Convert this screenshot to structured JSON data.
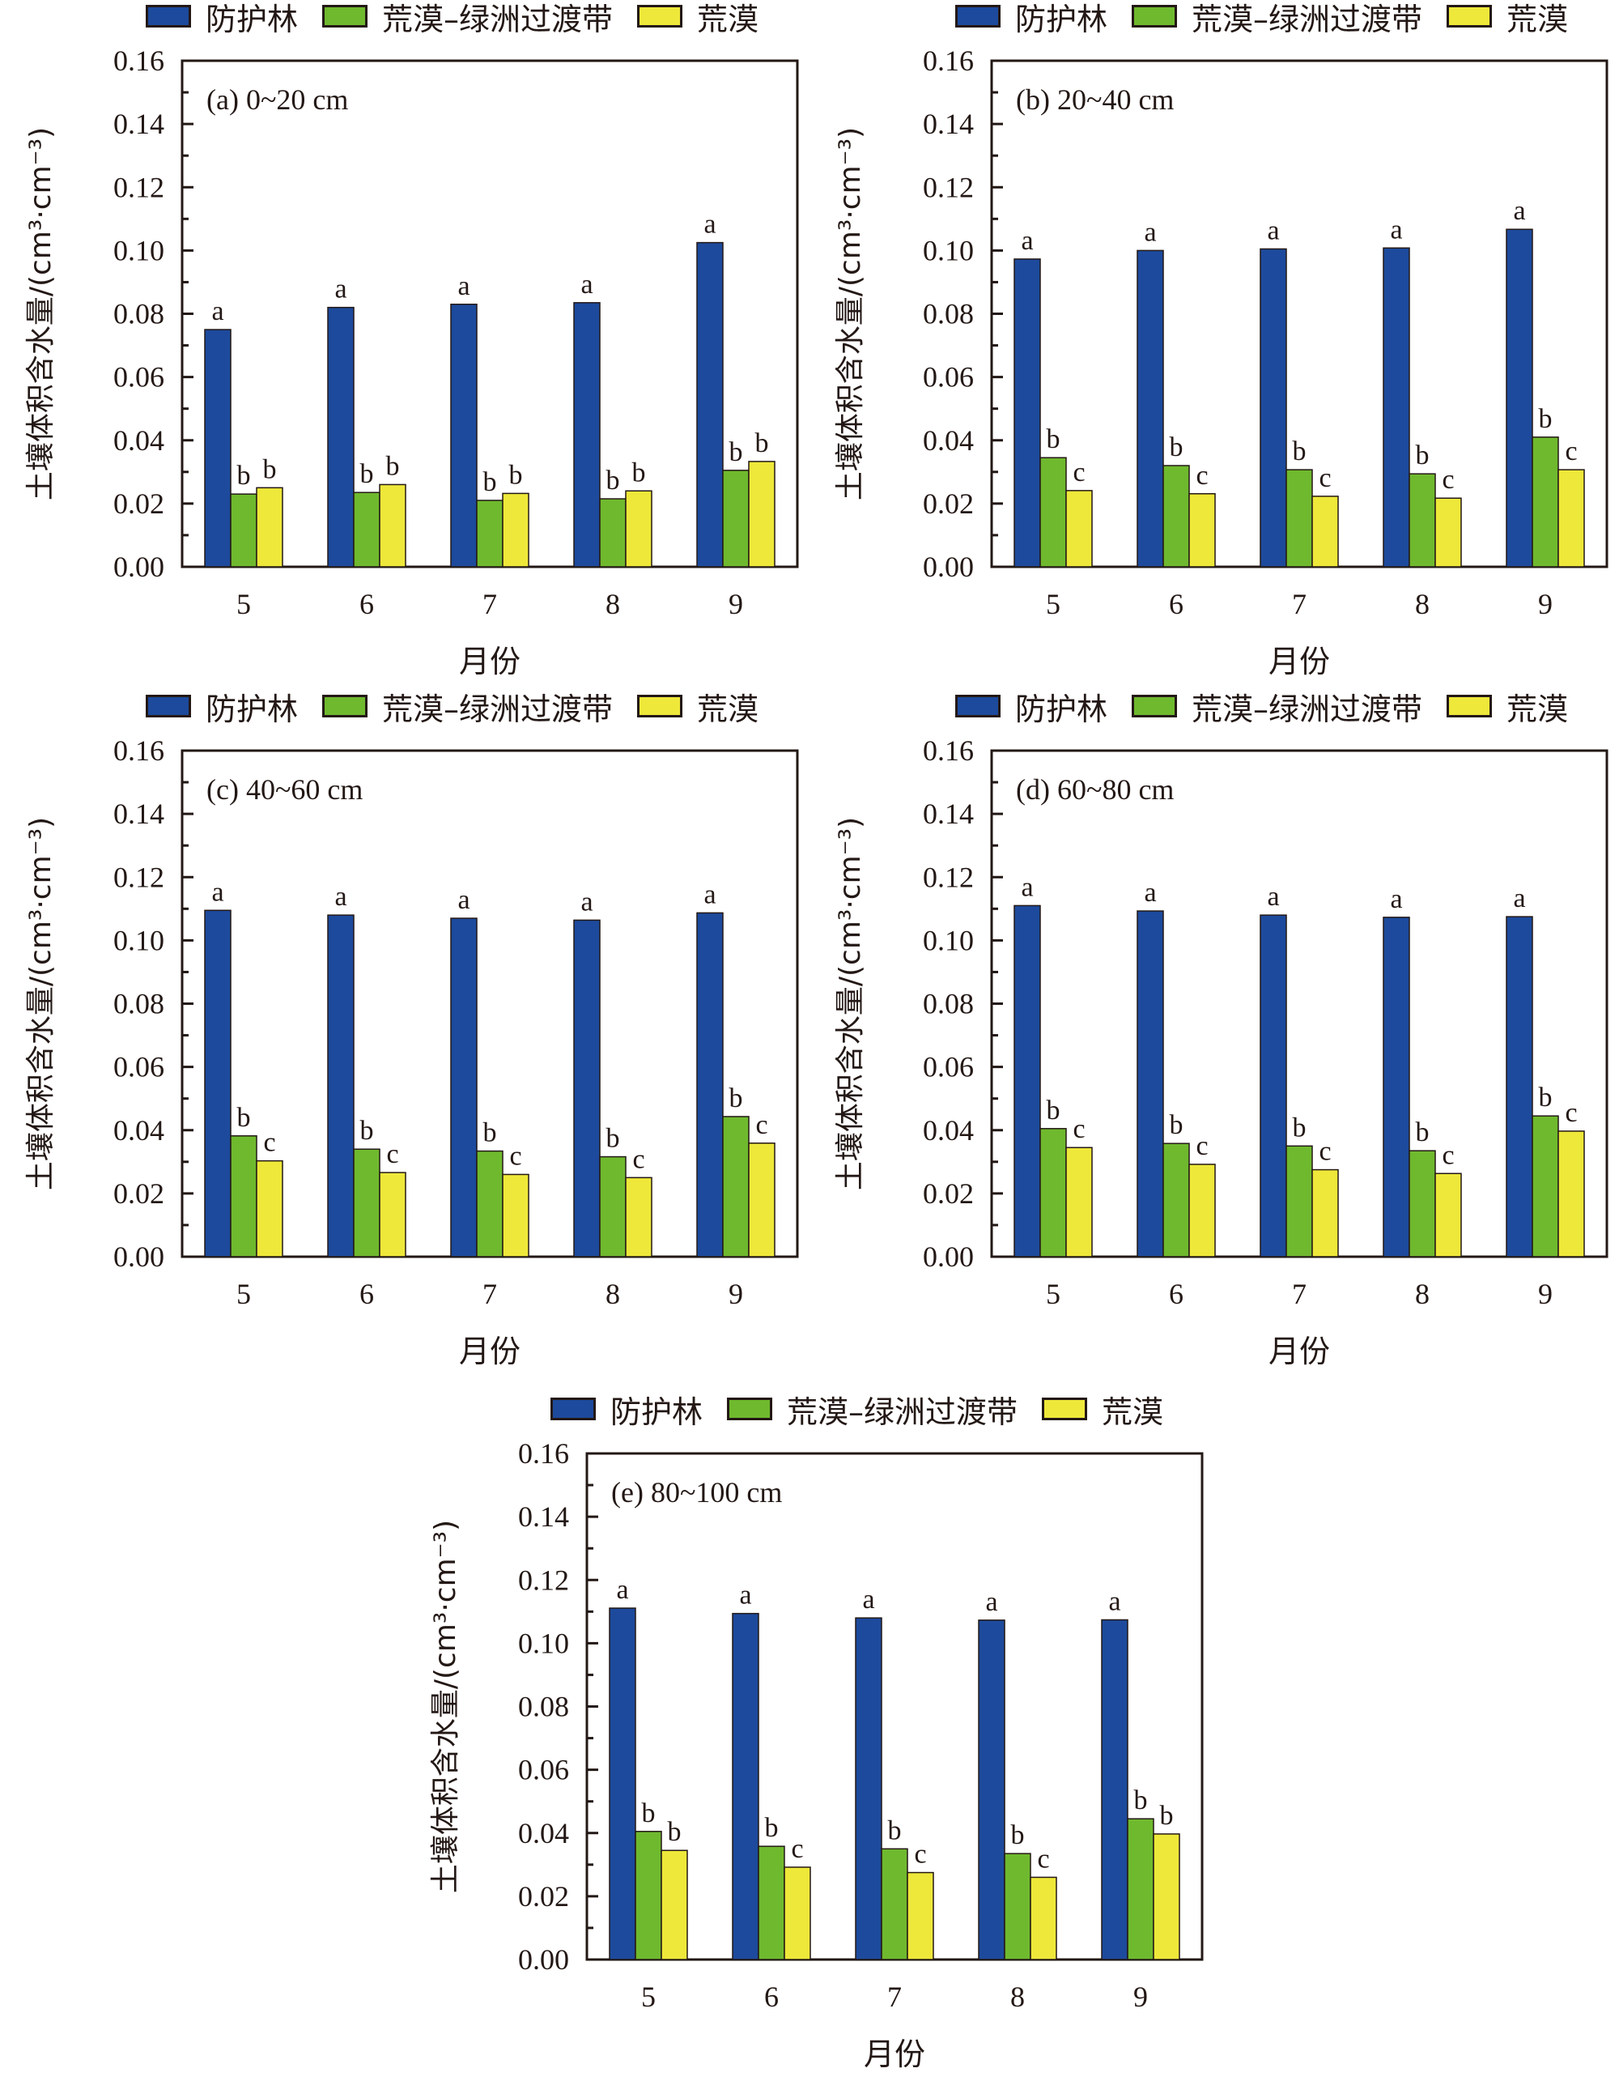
{
  "figure": {
    "legend": [
      {
        "label": "防护林",
        "color": "#1d4a9c"
      },
      {
        "label": "荒漠–绿洲过渡带",
        "color": "#6fb92e"
      },
      {
        "label": "荒漠",
        "color": "#eee83a"
      }
    ],
    "xlabel": "月份",
    "ylabel": "土壤体积含水量/(cm³·cm⁻³)"
  },
  "chart_data": [
    {
      "type": "bar",
      "panel": "a",
      "title": "(a) 0~20 cm",
      "categories": [
        "5",
        "6",
        "7",
        "8",
        "9"
      ],
      "xlabel": "月份",
      "ylabel": "土壤体积含水量/(cm³·cm⁻³)",
      "ylim": [
        0,
        0.16
      ],
      "yticks": [
        "0.00",
        "0.02",
        "0.04",
        "0.06",
        "0.08",
        "0.10",
        "0.12",
        "0.14",
        "0.16"
      ],
      "legend_position": "top",
      "series": [
        {
          "name": "防护林",
          "color": "#1d4a9c",
          "values": [
            0.075,
            0.082,
            0.083,
            0.0835,
            0.1025
          ],
          "letters": [
            "a",
            "a",
            "a",
            "a",
            "a"
          ]
        },
        {
          "name": "荒漠–绿洲过渡带",
          "color": "#6fb92e",
          "values": [
            0.023,
            0.0235,
            0.021,
            0.0215,
            0.0305
          ],
          "letters": [
            "b",
            "b",
            "b",
            "b",
            "b"
          ]
        },
        {
          "name": "荒漠",
          "color": "#eee83a",
          "values": [
            0.025,
            0.026,
            0.0232,
            0.024,
            0.0333
          ],
          "letters": [
            "b",
            "b",
            "b",
            "b",
            "b"
          ]
        }
      ]
    },
    {
      "type": "bar",
      "panel": "b",
      "title": "(b) 20~40 cm",
      "categories": [
        "5",
        "6",
        "7",
        "8",
        "9"
      ],
      "xlabel": "月份",
      "ylabel": "土壤体积含水量/(cm³·cm⁻³)",
      "ylim": [
        0,
        0.16
      ],
      "yticks": [
        "0.00",
        "0.02",
        "0.04",
        "0.06",
        "0.08",
        "0.10",
        "0.12",
        "0.14",
        "0.16"
      ],
      "legend_position": "top",
      "series": [
        {
          "name": "防护林",
          "color": "#1d4a9c",
          "values": [
            0.0973,
            0.1,
            0.1005,
            0.1008,
            0.1067
          ],
          "letters": [
            "a",
            "a",
            "a",
            "a",
            "a"
          ]
        },
        {
          "name": "荒漠–绿洲过渡带",
          "color": "#6fb92e",
          "values": [
            0.0345,
            0.032,
            0.0307,
            0.0294,
            0.041
          ],
          "letters": [
            "b",
            "b",
            "b",
            "b",
            "b"
          ]
        },
        {
          "name": "荒漠",
          "color": "#eee83a",
          "values": [
            0.0241,
            0.0231,
            0.0223,
            0.0217,
            0.0307
          ],
          "letters": [
            "c",
            "c",
            "c",
            "c",
            "c"
          ]
        }
      ]
    },
    {
      "type": "bar",
      "panel": "c",
      "title": "(c) 40~60 cm",
      "categories": [
        "5",
        "6",
        "7",
        "8",
        "9"
      ],
      "xlabel": "月份",
      "ylabel": "土壤体积含水量/(cm³·cm⁻³)",
      "ylim": [
        0,
        0.16
      ],
      "yticks": [
        "0.00",
        "0.02",
        "0.04",
        "0.06",
        "0.08",
        "0.10",
        "0.12",
        "0.14",
        "0.16"
      ],
      "legend_position": "top",
      "series": [
        {
          "name": "防护林",
          "color": "#1d4a9c",
          "values": [
            0.1095,
            0.108,
            0.107,
            0.1064,
            0.1087
          ],
          "letters": [
            "a",
            "a",
            "a",
            "a",
            "a"
          ]
        },
        {
          "name": "荒漠–绿洲过渡带",
          "color": "#6fb92e",
          "values": [
            0.0382,
            0.034,
            0.0334,
            0.0316,
            0.0443
          ],
          "letters": [
            "b",
            "b",
            "b",
            "b",
            "b"
          ]
        },
        {
          "name": "荒漠",
          "color": "#eee83a",
          "values": [
            0.0303,
            0.0266,
            0.026,
            0.025,
            0.0359
          ],
          "letters": [
            "c",
            "c",
            "c",
            "c",
            "c"
          ]
        }
      ]
    },
    {
      "type": "bar",
      "panel": "d",
      "title": "(d) 60~80 cm",
      "categories": [
        "5",
        "6",
        "7",
        "8",
        "9"
      ],
      "xlabel": "月份",
      "ylabel": "土壤体积含水量/(cm³·cm⁻³)",
      "ylim": [
        0,
        0.16
      ],
      "yticks": [
        "0.00",
        "0.02",
        "0.04",
        "0.06",
        "0.08",
        "0.10",
        "0.12",
        "0.14",
        "0.16"
      ],
      "legend_position": "top",
      "series": [
        {
          "name": "防护林",
          "color": "#1d4a9c",
          "values": [
            0.111,
            0.1093,
            0.108,
            0.1073,
            0.1075
          ],
          "letters": [
            "a",
            "a",
            "a",
            "a",
            "a"
          ]
        },
        {
          "name": "荒漠–绿洲过渡带",
          "color": "#6fb92e",
          "values": [
            0.0405,
            0.0358,
            0.035,
            0.0335,
            0.0445
          ],
          "letters": [
            "b",
            "b",
            "b",
            "b",
            "b"
          ]
        },
        {
          "name": "荒漠",
          "color": "#eee83a",
          "values": [
            0.0345,
            0.0292,
            0.0275,
            0.0263,
            0.0397
          ],
          "letters": [
            "c",
            "c",
            "c",
            "c",
            "c"
          ]
        }
      ]
    },
    {
      "type": "bar",
      "panel": "e",
      "title": "(e) 80~100 cm",
      "categories": [
        "5",
        "6",
        "7",
        "8",
        "9"
      ],
      "xlabel": "月份",
      "ylabel": "土壤体积含水量/(cm³·cm⁻³)",
      "ylim": [
        0,
        0.16
      ],
      "yticks": [
        "0.00",
        "0.02",
        "0.04",
        "0.06",
        "0.08",
        "0.10",
        "0.12",
        "0.14",
        "0.16"
      ],
      "legend_position": "top",
      "series": [
        {
          "name": "防护林",
          "color": "#1d4a9c",
          "values": [
            0.1111,
            0.1094,
            0.108,
            0.1073,
            0.1074
          ],
          "letters": [
            "a",
            "a",
            "a",
            "a",
            "a"
          ]
        },
        {
          "name": "荒漠–绿洲过渡带",
          "color": "#6fb92e",
          "values": [
            0.0405,
            0.0358,
            0.035,
            0.0335,
            0.0445
          ],
          "letters": [
            "b",
            "b",
            "b",
            "b",
            "b"
          ]
        },
        {
          "name": "荒漠",
          "color": "#eee83a",
          "values": [
            0.0345,
            0.0292,
            0.0275,
            0.026,
            0.0397
          ],
          "letters": [
            "b",
            "c",
            "c",
            "c",
            "b"
          ]
        }
      ]
    }
  ]
}
